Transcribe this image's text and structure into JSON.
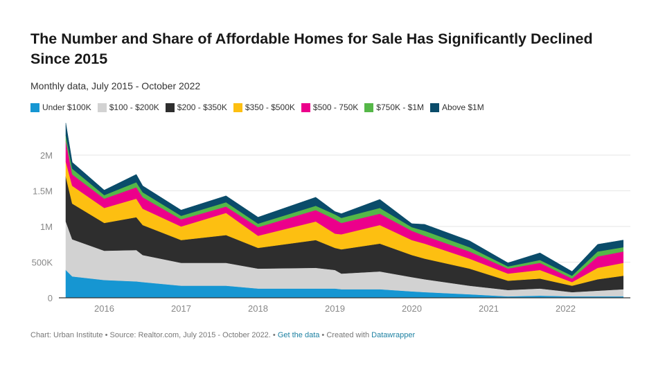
{
  "chart_data": {
    "type": "area",
    "stacked": true,
    "title": "The Number and Share of Affordable Homes for Sale Has Significantly Declined Since 2015",
    "subtitle": "Monthly data, July 2015 - October 2022",
    "xlabel": "",
    "ylabel": "",
    "ylim": [
      0,
      2500000
    ],
    "yticks": [
      {
        "v": 0,
        "label": "0"
      },
      {
        "v": 500000,
        "label": "500K"
      },
      {
        "v": 1000000,
        "label": "1M"
      },
      {
        "v": 1500000,
        "label": "1.5M"
      },
      {
        "v": 2000000,
        "label": "2M"
      }
    ],
    "xticks": [
      "2016",
      "2017",
      "2018",
      "2019",
      "2020",
      "2021",
      "2022"
    ],
    "grid": true,
    "legend_position": "top",
    "x": [
      "2015-07",
      "2015-08",
      "2016-01",
      "2016-06",
      "2016-07",
      "2017-01",
      "2017-08",
      "2018-01",
      "2018-10",
      "2019-01",
      "2019-02",
      "2019-08",
      "2020-01",
      "2020-03",
      "2020-10",
      "2021-04",
      "2021-09",
      "2022-02",
      "2022-06",
      "2022-10"
    ],
    "series": [
      {
        "name": "Under $100K",
        "color": "#1696d2",
        "values": [
          390000,
          300000,
          250000,
          230000,
          220000,
          170000,
          170000,
          130000,
          130000,
          130000,
          120000,
          120000,
          90000,
          80000,
          50000,
          20000,
          30000,
          20000,
          20000,
          20000
        ]
      },
      {
        "name": "$100 - $200K",
        "color": "#d2d2d2",
        "values": [
          680000,
          520000,
          410000,
          440000,
          380000,
          320000,
          320000,
          280000,
          290000,
          260000,
          220000,
          250000,
          200000,
          180000,
          120000,
          90000,
          100000,
          60000,
          80000,
          100000
        ]
      },
      {
        "name": "$200 - $350K",
        "color": "#2e2e2e",
        "values": [
          630000,
          500000,
          390000,
          460000,
          420000,
          320000,
          390000,
          290000,
          390000,
          310000,
          340000,
          390000,
          310000,
          290000,
          240000,
          130000,
          140000,
          90000,
          160000,
          190000
        ]
      },
      {
        "name": "$350 - $500K",
        "color": "#fdbf11",
        "values": [
          210000,
          250000,
          210000,
          260000,
          230000,
          190000,
          310000,
          170000,
          260000,
          200000,
          210000,
          260000,
          210000,
          210000,
          140000,
          100000,
          120000,
          50000,
          160000,
          180000
        ]
      },
      {
        "name": "$500 - 750K",
        "color": "#ec008b",
        "values": [
          290000,
          160000,
          130000,
          160000,
          160000,
          100000,
          90000,
          120000,
          160000,
          200000,
          160000,
          160000,
          130000,
          110000,
          100000,
          70000,
          100000,
          50000,
          160000,
          160000
        ]
      },
      {
        "name": "$750K - $1M",
        "color": "#55b748",
        "values": [
          80000,
          80000,
          50000,
          70000,
          70000,
          50000,
          60000,
          50000,
          60000,
          70000,
          70000,
          80000,
          50000,
          70000,
          60000,
          30000,
          40000,
          40000,
          70000,
          60000
        ]
      },
      {
        "name": "Above $1M",
        "color": "#0a4c6a",
        "values": [
          170000,
          90000,
          70000,
          110000,
          90000,
          80000,
          90000,
          90000,
          120000,
          40000,
          60000,
          120000,
          50000,
          90000,
          90000,
          50000,
          100000,
          60000,
          100000,
          100000
        ]
      }
    ]
  },
  "footer": {
    "prefix": "Chart: Urban Institute • Source: Realtor.com, July 2015 - October 2022. • ",
    "get_data": "Get the data",
    "mid": " • Created with ",
    "datawrapper": "Datawrapper"
  }
}
